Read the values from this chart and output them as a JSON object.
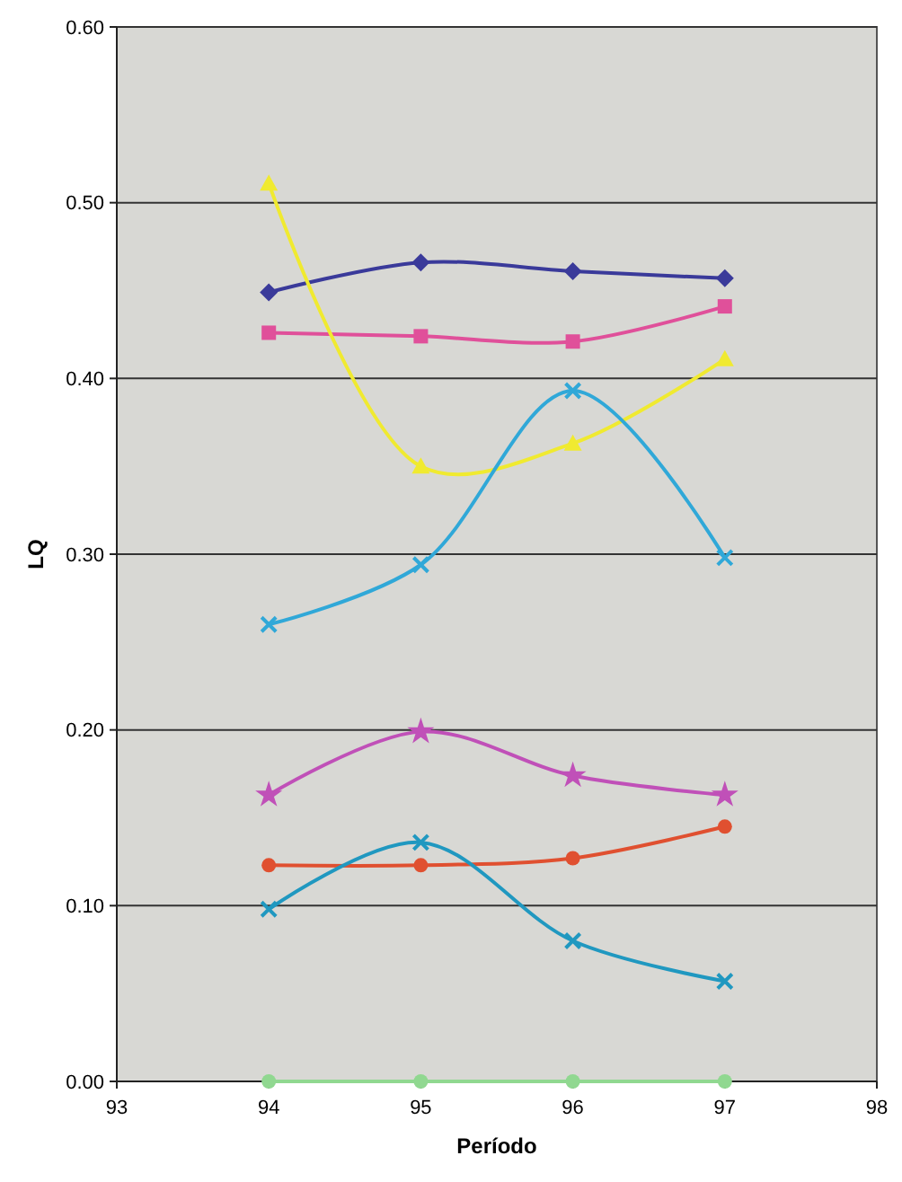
{
  "chart_data": {
    "type": "line",
    "xlabel": "Período",
    "ylabel": "LQ",
    "x": [
      94,
      95,
      96,
      97
    ],
    "xlim": [
      93,
      98
    ],
    "xticks": [
      93,
      94,
      95,
      96,
      97,
      98
    ],
    "ylim": [
      0,
      0.6
    ],
    "yticks": [
      {
        "value": 0,
        "label": "0.00"
      },
      {
        "value": 0.1,
        "label": "0.10"
      },
      {
        "value": 0.2,
        "label": "0.20"
      },
      {
        "value": 0.3,
        "label": "0.30"
      },
      {
        "value": 0.4,
        "label": "0.40"
      },
      {
        "value": 0.5,
        "label": "0.50"
      },
      {
        "value": 0.6,
        "label": "0.60"
      }
    ],
    "grid": "y",
    "series": [
      {
        "color": "#3a3a9a",
        "marker": "diamond",
        "values": [
          0.449,
          0.466,
          0.461,
          0.457
        ]
      },
      {
        "color": "#e0509a",
        "marker": "square",
        "values": [
          0.426,
          0.424,
          0.421,
          0.441
        ]
      },
      {
        "color": "#f0ea30",
        "marker": "triangle",
        "values": [
          0.511,
          0.35,
          0.363,
          0.411
        ]
      },
      {
        "color": "#30a8d8",
        "marker": "cross",
        "values": [
          0.26,
          0.294,
          0.393,
          0.298
        ]
      },
      {
        "color": "#c050b8",
        "marker": "star",
        "values": [
          0.163,
          0.199,
          0.174,
          0.163
        ]
      },
      {
        "color": "#e05030",
        "marker": "circle",
        "values": [
          0.123,
          0.123,
          0.127,
          0.145
        ]
      },
      {
        "color": "#2098c0",
        "marker": "cross",
        "values": [
          0.098,
          0.136,
          0.08,
          0.057
        ]
      },
      {
        "color": "#90d890",
        "marker": "circle",
        "values": [
          0,
          0,
          0,
          0
        ]
      }
    ]
  }
}
